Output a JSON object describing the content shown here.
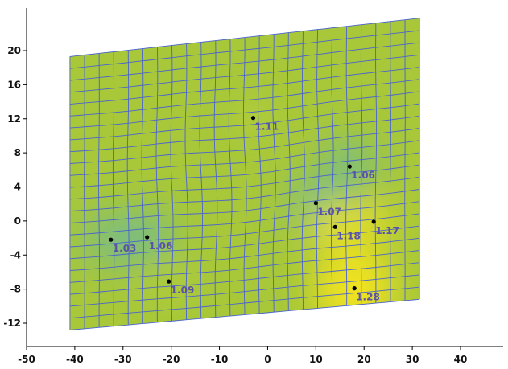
{
  "chart_data": {
    "type": "scatter",
    "title": "",
    "xlabel": "",
    "ylabel": "",
    "xlim": [
      -50,
      50
    ],
    "ylim": [
      -14.5,
      25
    ],
    "x_ticks": [
      -50,
      -40,
      -30,
      -20,
      -10,
      0,
      10,
      20,
      30,
      40
    ],
    "y_ticks": [
      -12,
      -8,
      -4,
      0,
      4,
      8,
      12,
      16,
      20
    ],
    "x_tick_labels": [
      "-50",
      "-40",
      "-30",
      "-20",
      "-10",
      "0",
      "10",
      "20",
      "30",
      "40"
    ],
    "y_tick_labels": [
      "-12",
      "-8",
      "-4",
      "0",
      "4",
      "8",
      "12",
      "16",
      "20"
    ],
    "grid": false,
    "legend": "none",
    "mesh": {
      "corners": {
        "top_left": [
          -41,
          19.3
        ],
        "top_right": [
          31.5,
          23.8
        ],
        "bottom_right": [
          31.5,
          -9.2
        ],
        "bottom_left": [
          -41,
          -12.8
        ]
      },
      "columns": 24,
      "rows": 23,
      "line_color": "#4a63d0"
    },
    "color_field": {
      "base_color": "#a8c83a",
      "low_color": "#6ab8a0",
      "high_color": "#f4e41c"
    },
    "points": [
      {
        "x": -32.5,
        "y": -2.2,
        "label": "1.03"
      },
      {
        "x": -25,
        "y": -1.9,
        "label": "1.06"
      },
      {
        "x": -20.5,
        "y": -7.1,
        "label": "1.09"
      },
      {
        "x": -3,
        "y": 12.1,
        "label": "1.11"
      },
      {
        "x": 17,
        "y": 6.4,
        "label": "1.06"
      },
      {
        "x": 10,
        "y": 2.1,
        "label": "1.07"
      },
      {
        "x": 14,
        "y": -0.7,
        "label": "1.18"
      },
      {
        "x": 22,
        "y": -0.1,
        "label": "1.17"
      },
      {
        "x": 18,
        "y": -7.9,
        "label": "1.28"
      }
    ],
    "point_color": "#000000",
    "point_label_color": "#5a52a8"
  }
}
